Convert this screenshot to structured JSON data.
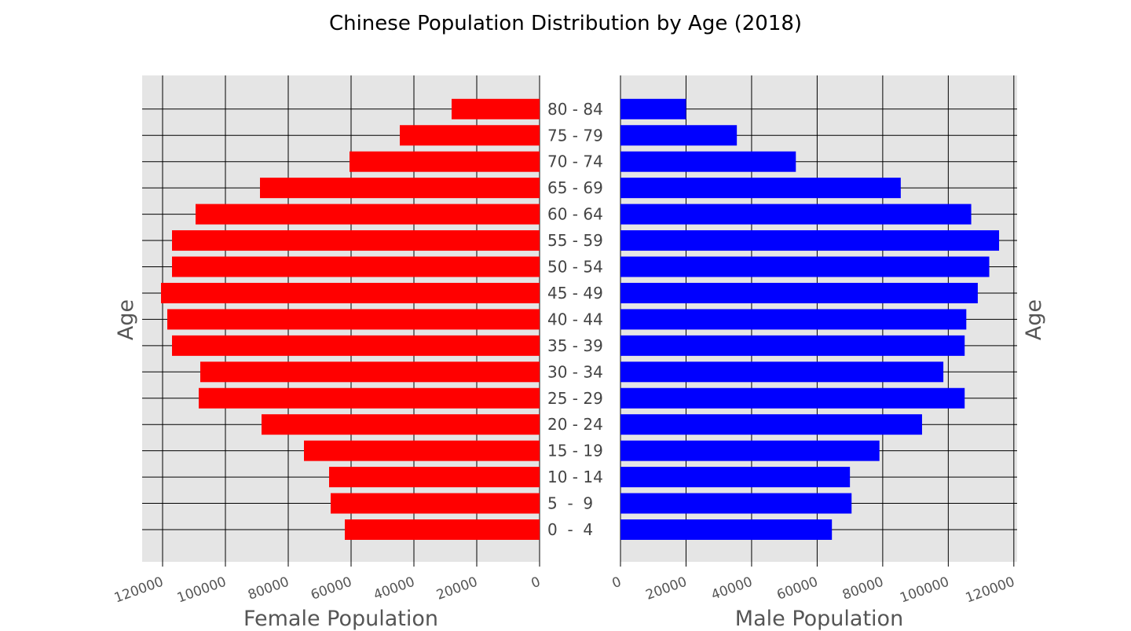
{
  "chart_data": {
    "type": "bar",
    "title": "Chinese Population Distribution by Age (2018)",
    "ylabel": "Age",
    "categories": [
      "0  -  4",
      "5  -  9",
      "10 - 14",
      "15 - 19",
      "20 - 24",
      "25 - 29",
      "30 - 34",
      "35 - 39",
      "40 - 44",
      "45 - 49",
      "50 - 54",
      "55 - 59",
      "60 - 64",
      "65 - 69",
      "70 - 74",
      "75 - 79",
      "80 - 84"
    ],
    "series": [
      {
        "name": "Female Population",
        "color": "#ff0000",
        "xlabel": "Female Population",
        "xlim": [
          126500,
          0
        ],
        "ticks": [
          120000,
          100000,
          80000,
          60000,
          40000,
          20000,
          0
        ],
        "values": [
          62000,
          66500,
          67000,
          75000,
          88500,
          108500,
          108000,
          117000,
          118500,
          120500,
          117000,
          117000,
          109500,
          89000,
          60500,
          44500,
          28000
        ]
      },
      {
        "name": "Male Population",
        "color": "#0000ff",
        "xlabel": "Male Population",
        "xlim": [
          0,
          121000
        ],
        "ticks": [
          0,
          20000,
          40000,
          60000,
          80000,
          100000,
          120000
        ],
        "values": [
          64500,
          70500,
          70000,
          79000,
          92000,
          105000,
          98500,
          105000,
          105500,
          109000,
          112500,
          115500,
          107000,
          85500,
          53500,
          35500,
          20000
        ]
      }
    ],
    "grid": true
  }
}
